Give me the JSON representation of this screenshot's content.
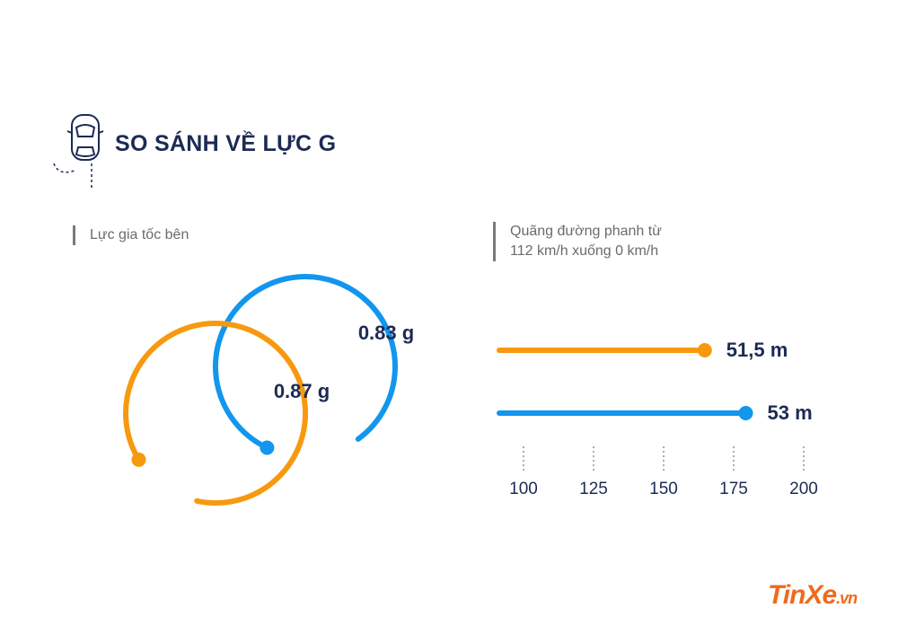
{
  "header": {
    "title": "SO SÁNH VỀ LỰC G",
    "icon": "car-top-icon"
  },
  "colors": {
    "orange": "#f7990f",
    "blue": "#1296ee",
    "navy": "#1c2b54",
    "gray": "#777777"
  },
  "chart_data": [
    {
      "type": "radial",
      "title": "Lực gia tốc bên",
      "unit": "g",
      "series": [
        {
          "key": "orange",
          "value": 0.87,
          "label": "0.87 g"
        },
        {
          "key": "blue",
          "value": 0.83,
          "label": "0.83 g"
        }
      ]
    },
    {
      "type": "bar",
      "orientation": "horizontal",
      "title_lines": [
        "Quãng đường phanh từ",
        "112 km/h xuống 0 km/h"
      ],
      "unit": "m",
      "x_ticks": [
        100,
        125,
        150,
        175,
        200
      ],
      "bars": [
        {
          "key": "orange",
          "value": 51.5,
          "label": "51,5 m"
        },
        {
          "key": "blue",
          "value": 53,
          "label": "53 m"
        }
      ]
    }
  ],
  "watermark": {
    "brand": "TinXe",
    "suffix": ".vn"
  }
}
